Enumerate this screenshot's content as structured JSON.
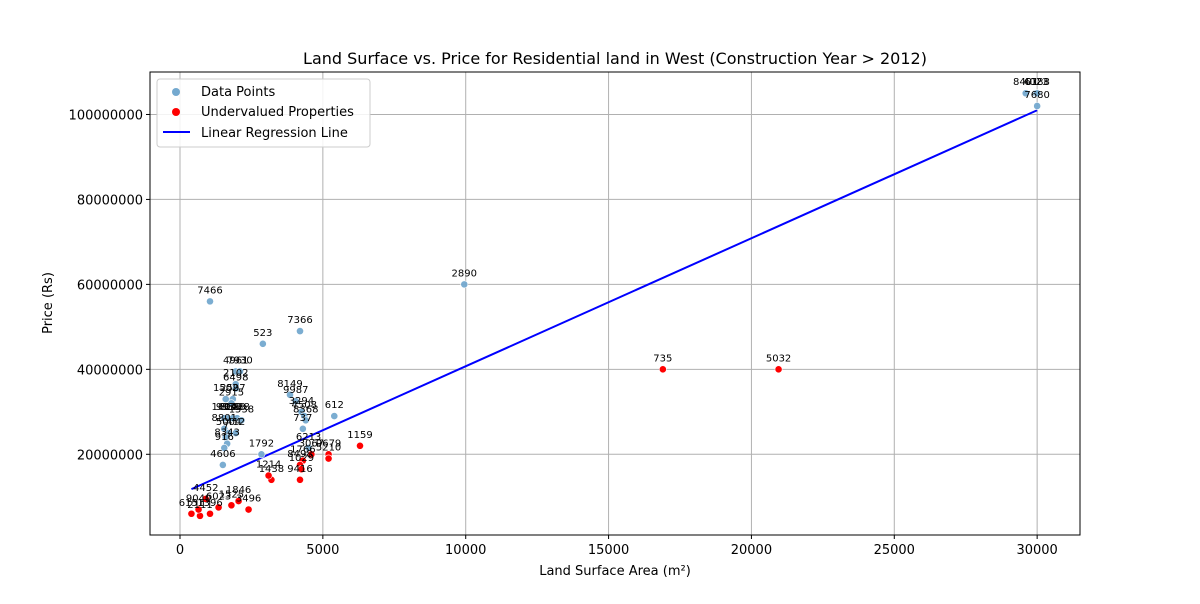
{
  "chart_data": {
    "type": "scatter",
    "title": "Land Surface vs. Price for Residential land in West (Construction Year > 2012)",
    "xlabel": "Land Surface Area (m²)",
    "ylabel": "Price (Rs)",
    "xlim": [
      -1050,
      31500
    ],
    "ylim": [
      1000000,
      110000000
    ],
    "xticks": [
      0,
      5000,
      10000,
      15000,
      20000,
      25000,
      30000
    ],
    "yticks": [
      20000000,
      40000000,
      60000000,
      80000000,
      100000000
    ],
    "grid": true,
    "legend_position": "top-left",
    "legend": [
      {
        "label": "Data Points",
        "kind": "point",
        "color": "#74a9cf"
      },
      {
        "label": "Undervalued Properties",
        "kind": "point",
        "color": "#ff0000"
      },
      {
        "label": "Linear Regression Line",
        "kind": "line",
        "color": "#0000ff"
      }
    ],
    "colors": {
      "data_points": "#74a9cf",
      "undervalued": "#ff0000",
      "regression": "#0000ff"
    },
    "regression_line": {
      "x": [
        400,
        30000
      ],
      "y": [
        11800000,
        101000000
      ]
    },
    "series": [
      {
        "name": "Data Points",
        "points": [
          {
            "x": 29600,
            "y": 105000000,
            "label": "8401"
          },
          {
            "x": 29950,
            "y": 105000000,
            "label": "4023"
          },
          {
            "x": 30000,
            "y": 105000000,
            "label": "6188"
          },
          {
            "x": 30000,
            "y": 102000000,
            "label": "7680"
          },
          {
            "x": 9950,
            "y": 60000000,
            "label": "2890"
          },
          {
            "x": 1050,
            "y": 56000000,
            "label": "7466"
          },
          {
            "x": 4200,
            "y": 49000000,
            "label": "7366"
          },
          {
            "x": 2900,
            "y": 46000000,
            "label": "523"
          },
          {
            "x": 1950,
            "y": 39500000,
            "label": "4961"
          },
          {
            "x": 2100,
            "y": 39500000,
            "label": "7930"
          },
          {
            "x": 1950,
            "y": 36500000,
            "label": "2102"
          },
          {
            "x": 1950,
            "y": 35500000,
            "label": "6498"
          },
          {
            "x": 3850,
            "y": 34000000,
            "label": "8149"
          },
          {
            "x": 4050,
            "y": 32500000,
            "label": "9987"
          },
          {
            "x": 1600,
            "y": 33000000,
            "label": "1502"
          },
          {
            "x": 1850,
            "y": 33000000,
            "label": "2597"
          },
          {
            "x": 1800,
            "y": 32000000,
            "label": "2915"
          },
          {
            "x": 4250,
            "y": 30000000,
            "label": "3294"
          },
          {
            "x": 4350,
            "y": 29000000,
            "label": "4508"
          },
          {
            "x": 4400,
            "y": 28000000,
            "label": "8368"
          },
          {
            "x": 5400,
            "y": 29000000,
            "label": "612"
          },
          {
            "x": 4300,
            "y": 26000000,
            "label": "737"
          },
          {
            "x": 1550,
            "y": 28500000,
            "label": "1604"
          },
          {
            "x": 1700,
            "y": 28500000,
            "label": "9939"
          },
          {
            "x": 1850,
            "y": 28500000,
            "label": "8688"
          },
          {
            "x": 2000,
            "y": 28500000,
            "label": "1938"
          },
          {
            "x": 2150,
            "y": 28000000,
            "label": "1538"
          },
          {
            "x": 1550,
            "y": 26000000,
            "label": "8801"
          },
          {
            "x": 1700,
            "y": 25000000,
            "label": "5004"
          },
          {
            "x": 1950,
            "y": 25000000,
            "label": "412"
          },
          {
            "x": 1600,
            "y": 24000000,
            "label": "7"
          },
          {
            "x": 1650,
            "y": 22500000,
            "label": "8343"
          },
          {
            "x": 1550,
            "y": 21500000,
            "label": "916"
          },
          {
            "x": 2850,
            "y": 20000000,
            "label": "1792"
          },
          {
            "x": 4500,
            "y": 21500000,
            "label": "6213"
          },
          {
            "x": 1500,
            "y": 17500000,
            "label": "4606"
          }
        ]
      },
      {
        "name": "Undervalued Properties",
        "points": [
          {
            "x": 16900,
            "y": 40000000,
            "label": "735"
          },
          {
            "x": 20950,
            "y": 40000000,
            "label": "5032"
          },
          {
            "x": 6300,
            "y": 22000000,
            "label": "1159"
          },
          {
            "x": 4600,
            "y": 20000000,
            "label": "3067"
          },
          {
            "x": 5200,
            "y": 20000000,
            "label": "9679"
          },
          {
            "x": 5200,
            "y": 19000000,
            "label": "5210"
          },
          {
            "x": 4300,
            "y": 18500000,
            "label": "1766"
          },
          {
            "x": 4200,
            "y": 17500000,
            "label": "8498"
          },
          {
            "x": 4250,
            "y": 16500000,
            "label": "1029"
          },
          {
            "x": 4200,
            "y": 14000000,
            "label": "9416"
          },
          {
            "x": 3200,
            "y": 14000000,
            "label": "1438"
          },
          {
            "x": 3100,
            "y": 15000000,
            "label": "1214"
          },
          {
            "x": 2400,
            "y": 7000000,
            "label": "3496"
          },
          {
            "x": 2050,
            "y": 9000000,
            "label": "1846"
          },
          {
            "x": 1800,
            "y": 8000000,
            "label": "1525"
          },
          {
            "x": 1050,
            "y": 6000000,
            "label": "1396"
          },
          {
            "x": 700,
            "y": 5500000,
            "label": "2111"
          },
          {
            "x": 400,
            "y": 6000000,
            "label": "6151"
          },
          {
            "x": 650,
            "y": 7000000,
            "label": "9040"
          },
          {
            "x": 1350,
            "y": 7500000,
            "label": "6023"
          },
          {
            "x": 900,
            "y": 9500000,
            "label": "4452"
          }
        ]
      }
    ]
  }
}
